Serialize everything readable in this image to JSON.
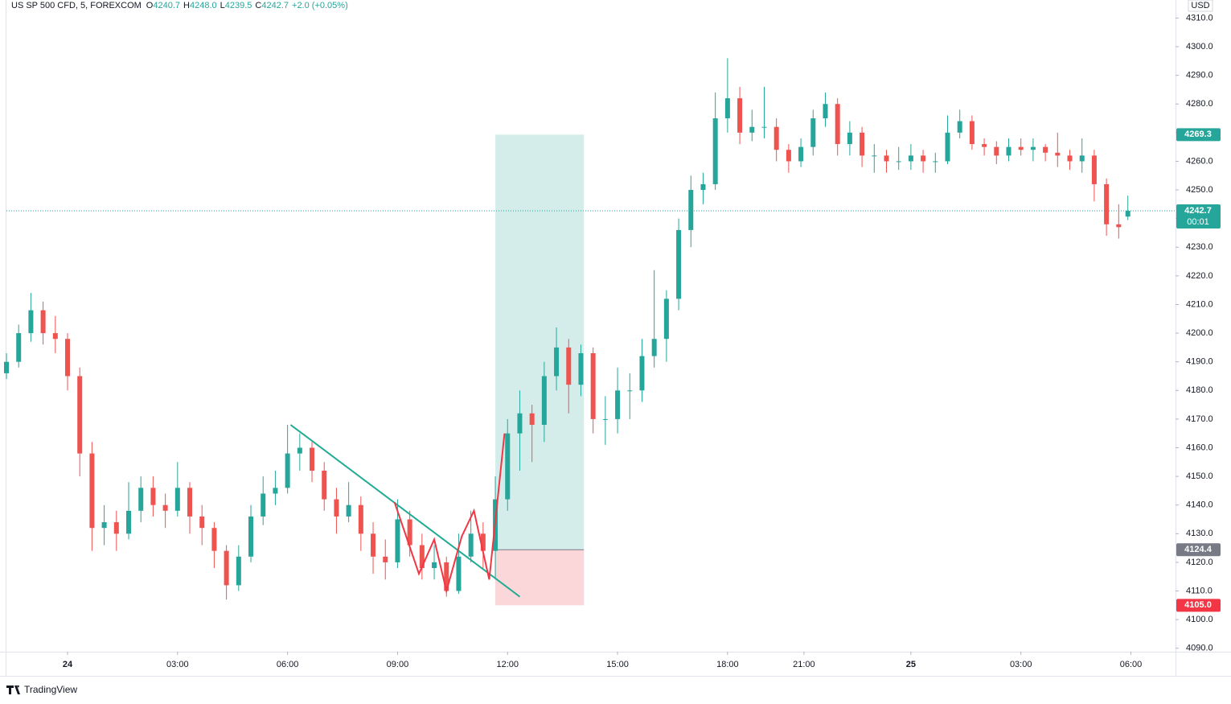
{
  "chart_data": {
    "type": "candlestick",
    "title": "US SP 500 CFD, 5, FOREXCOM",
    "ohlc_legend": [
      {
        "label": "O",
        "value": "4240.7"
      },
      {
        "label": "H",
        "value": "4248.0"
      },
      {
        "label": "L",
        "value": "4239.5"
      },
      {
        "label": "C",
        "value": "4242.7"
      }
    ],
    "change": "+2.0 (+0.05%)",
    "currency": "USD",
    "brand": "TradingView",
    "up_color": "#26a69a",
    "down_color": "#ef5350",
    "x": [
      0,
      4,
      8,
      12,
      16,
      20,
      24,
      28,
      32,
      36,
      40,
      44,
      48,
      52,
      56,
      60,
      64,
      68,
      72,
      76,
      80,
      84,
      88,
      92,
      96,
      100,
      104,
      108,
      112,
      116,
      120,
      124,
      128,
      132,
      136,
      140,
      144,
      148,
      152,
      156,
      160,
      164,
      168,
      172,
      176,
      180,
      184,
      188,
      192,
      196,
      200,
      204,
      208,
      212,
      216,
      220,
      224,
      228,
      232,
      236,
      240,
      244,
      248,
      252,
      256,
      260,
      264,
      268,
      272,
      276,
      280,
      284,
      288,
      292,
      296,
      300,
      304,
      308,
      312,
      316,
      320,
      324,
      328,
      332,
      336,
      340,
      344,
      348,
      352,
      356,
      360,
      364,
      367
    ],
    "open": [
      4186,
      4190,
      4200,
      4208,
      4200,
      4198,
      4185,
      4158,
      4132,
      4134,
      4130,
      4138,
      4146,
      4140,
      4138,
      4146,
      4136,
      4132,
      4124,
      4112,
      4122,
      4136,
      4144,
      4146,
      4158,
      4160,
      4152,
      4142,
      4136,
      4140,
      4130,
      4122,
      4120,
      4135,
      4126,
      4118,
      4120,
      4110,
      4122,
      4130,
      4124,
      4142,
      4165,
      4172,
      4168,
      4185,
      4195,
      4182,
      4193,
      4170,
      4170,
      4180,
      4180,
      4192,
      4198,
      4212,
      4236,
      4250,
      4252,
      4275,
      4282,
      4270,
      4272,
      4272,
      4264,
      4260,
      4265,
      4275,
      4280,
      4266,
      4270,
      4262,
      4262,
      4260,
      4260,
      4262,
      4260,
      4260,
      4270,
      4274,
      4266,
      4265,
      4262,
      4265,
      4264,
      4265,
      4263,
      4262,
      4260,
      4262,
      4252,
      4238,
      4240.7
    ],
    "high": [
      4193,
      4203,
      4214,
      4211,
      4206,
      4200,
      4188,
      4162,
      4140,
      4138,
      4148,
      4150,
      4150,
      4144,
      4155,
      4148,
      4140,
      4134,
      4126,
      4126,
      4140,
      4150,
      4152,
      4168,
      4165,
      4162,
      4155,
      4146,
      4148,
      4143,
      4134,
      4128,
      4142,
      4138,
      4130,
      4126,
      4122,
      4130,
      4138,
      4134,
      4150,
      4170,
      4180,
      4175,
      4190,
      4202,
      4198,
      4196,
      4195,
      4178,
      4188,
      4186,
      4198,
      4222,
      4215,
      4240,
      4255,
      4256,
      4284,
      4296,
      4286,
      4278,
      4286,
      4275,
      4266,
      4268,
      4278,
      4284,
      4282,
      4274,
      4272,
      4266,
      4264,
      4265,
      4266,
      4264,
      4263,
      4276,
      4278,
      4276,
      4268,
      4267,
      4268,
      4268,
      4268,
      4266,
      4270,
      4264,
      4268,
      4264,
      4254,
      4245,
      4248.0
    ],
    "low": [
      4184,
      4188,
      4197,
      4196,
      4193,
      4180,
      4150,
      4124,
      4126,
      4124,
      4128,
      4134,
      4136,
      4132,
      4136,
      4130,
      4126,
      4118,
      4107,
      4110,
      4120,
      4133,
      4140,
      4144,
      4152,
      4148,
      4138,
      4130,
      4134,
      4124,
      4116,
      4114,
      4118,
      4122,
      4114,
      4114,
      4108,
      4109,
      4120,
      4118,
      4114,
      4138,
      4152,
      4155,
      4162,
      4180,
      4172,
      4178,
      4165,
      4161,
      4165,
      4170,
      4176,
      4188,
      4190,
      4208,
      4230,
      4245,
      4250,
      4270,
      4266,
      4267,
      4268,
      4260,
      4256,
      4258,
      4262,
      4272,
      4262,
      4262,
      4258,
      4256,
      4256,
      4257,
      4257,
      4256,
      4256,
      4259,
      4268,
      4264,
      4262,
      4259,
      4260,
      4262,
      4260,
      4260,
      4258,
      4257,
      4256,
      4246,
      4234,
      4233,
      4239.5
    ],
    "close": [
      4190,
      4200,
      4208,
      4200,
      4198,
      4185,
      4158,
      4132,
      4134,
      4130,
      4138,
      4146,
      4140,
      4138,
      4146,
      4136,
      4132,
      4124,
      4112,
      4122,
      4136,
      4144,
      4146,
      4158,
      4160,
      4152,
      4142,
      4136,
      4140,
      4130,
      4122,
      4120,
      4135,
      4126,
      4118,
      4120,
      4110,
      4122,
      4130,
      4124,
      4142,
      4165,
      4172,
      4168,
      4185,
      4195,
      4182,
      4193,
      4170,
      4170,
      4180,
      4180,
      4192,
      4198,
      4212,
      4236,
      4250,
      4252,
      4275,
      4282,
      4270,
      4272,
      4272,
      4264,
      4260,
      4265,
      4275,
      4280,
      4266,
      4270,
      4262,
      4262,
      4260,
      4260,
      4262,
      4260,
      4260,
      4270,
      4274,
      4266,
      4265,
      4262,
      4265,
      4264,
      4265,
      4263,
      4262,
      4260,
      4262,
      4252,
      4238,
      4237,
      4242.7
    ],
    "xlim": [
      0,
      382.6
    ],
    "xticks": [
      {
        "value": 20,
        "label": "24"
      },
      {
        "value": 56,
        "label": "03:00"
      },
      {
        "value": 92,
        "label": "06:00"
      },
      {
        "value": 128,
        "label": "09:00"
      },
      {
        "value": 164,
        "label": "12:00"
      },
      {
        "value": 200,
        "label": "15:00"
      },
      {
        "value": 236,
        "label": "18:00"
      },
      {
        "value": 261,
        "label": "21:00"
      },
      {
        "value": 296,
        "label": "25"
      },
      {
        "value": 332,
        "label": "03:00"
      },
      {
        "value": 368,
        "label": "06:00"
      }
    ],
    "ylim": [
      4088.8,
      4316.3
    ],
    "yticks": [
      {
        "value": 4090,
        "label": "4090.0"
      },
      {
        "value": 4100,
        "label": "4100.0"
      },
      {
        "value": 4110,
        "label": "4110.0"
      },
      {
        "value": 4120,
        "label": "4120.0"
      },
      {
        "value": 4130,
        "label": "4130.0"
      },
      {
        "value": 4140,
        "label": "4140.0"
      },
      {
        "value": 4150,
        "label": "4150.0"
      },
      {
        "value": 4160,
        "label": "4160.0"
      },
      {
        "value": 4170,
        "label": "4170.0"
      },
      {
        "value": 4180,
        "label": "4180.0"
      },
      {
        "value": 4190,
        "label": "4190.0"
      },
      {
        "value": 4200,
        "label": "4200.0"
      },
      {
        "value": 4210,
        "label": "4210.0"
      },
      {
        "value": 4220,
        "label": "4220.0"
      },
      {
        "value": 4230,
        "label": "4230.0"
      },
      {
        "value": 4240,
        "label": "4240.0"
      },
      {
        "value": 4250,
        "label": "4250.0"
      },
      {
        "value": 4260,
        "label": "4260.0"
      },
      {
        "value": 4270,
        "label": "4270.0"
      },
      {
        "value": 4280,
        "label": "4280.0"
      },
      {
        "value": 4290,
        "label": "4290.0"
      },
      {
        "value": 4300,
        "label": "4300.0"
      },
      {
        "value": 4310,
        "label": "4310.0"
      }
    ],
    "last_price": 4242.7,
    "countdown": "00:01",
    "position": {
      "x": [
        160,
        189
      ],
      "entry": 4124.4,
      "target": 4269.3,
      "stop": {
        "value": 4105.0,
        "label": "4105.0"
      }
    },
    "trendline": {
      "color": "#22ab94",
      "points": [
        [
          93,
          4168
        ],
        [
          168,
          4108
        ]
      ]
    },
    "pattern": {
      "color": "#f23645",
      "points": [
        [
          127,
          4141
        ],
        [
          135,
          4116
        ],
        [
          140,
          4128
        ],
        [
          144,
          4110
        ],
        [
          149,
          4129
        ],
        [
          153,
          4138
        ],
        [
          158,
          4114
        ],
        [
          163,
          4165
        ]
      ]
    }
  }
}
